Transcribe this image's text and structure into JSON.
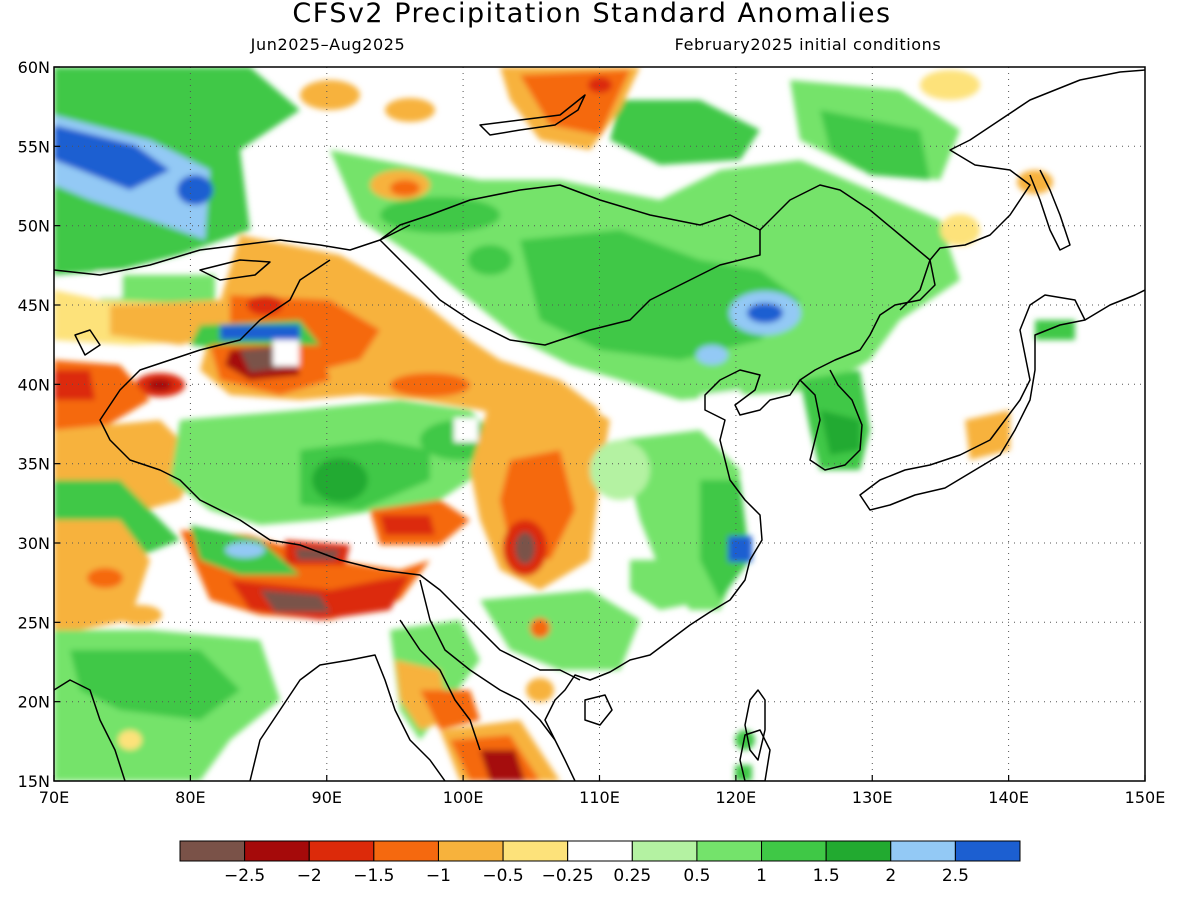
{
  "title": "CFSv2 Precipitation Standard Anomalies",
  "subtitle_left": "Jun2025–Aug2025",
  "subtitle_right": "February2025 initial conditions",
  "map": {
    "lon_range": [
      70,
      150
    ],
    "lat_range": [
      15,
      60
    ],
    "lon_ticks": [
      "70E",
      "80E",
      "90E",
      "100E",
      "110E",
      "120E",
      "130E",
      "140E",
      "150E"
    ],
    "lat_ticks": [
      "15N",
      "20N",
      "25N",
      "30N",
      "35N",
      "40N",
      "45N",
      "50N",
      "55N",
      "60N"
    ],
    "gridlines": "dotted",
    "coastlines_and_borders": true
  },
  "colorbar": {
    "labels": [
      "−2.5",
      "−2",
      "−1.5",
      "−1",
      "−0.5",
      "−0.25",
      "0.25",
      "0.5",
      "1",
      "1.5",
      "2",
      "2.5"
    ],
    "colors": [
      "#7a5248",
      "#a50a0a",
      "#dc2a0a",
      "#f5690f",
      "#f7b23c",
      "#fde27a",
      "#ffffff",
      "#b4f2a2",
      "#74e36b",
      "#3fc846",
      "#22aa30",
      "#93c9f5",
      "#1c5fd1"
    ]
  }
}
